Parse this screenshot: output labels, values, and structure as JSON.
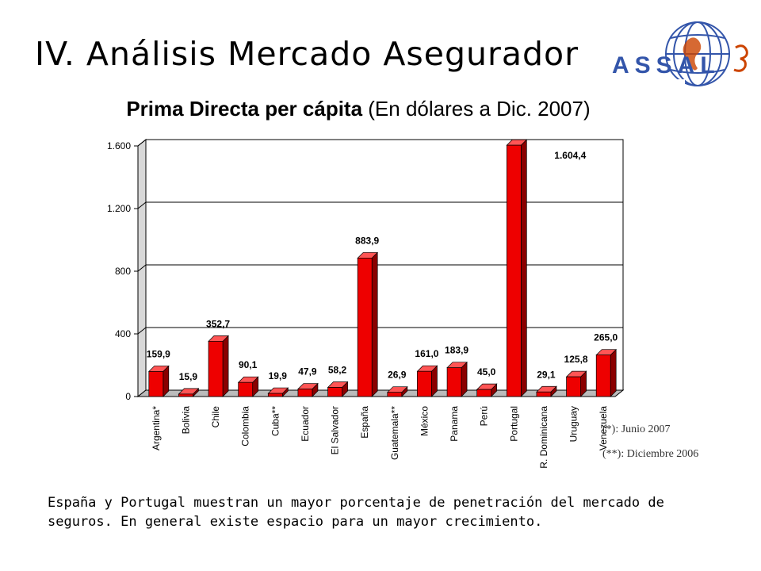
{
  "slide": {
    "title": "IV. Análisis Mercado Asegurador",
    "logo_text": "ASSAL",
    "caption": "España y Portugal muestran un mayor porcentaje de penetración del mercado de seguros. En general existe espacio para un mayor crecimiento."
  },
  "chart_data": {
    "type": "bar",
    "title_bold": "Prima Directa per cápita",
    "title_regular": " (En dólares a Dic. 2007)",
    "categories": [
      "Argentina*",
      "Bolivia",
      "Chile",
      "Colombia",
      "Cuba**",
      "Ecuador",
      "El Salvador",
      "España",
      "Guatemala**",
      "México",
      "Panama",
      "Perú",
      "Portugal",
      "R. Dominicana",
      "Uruguay",
      "Venezuela"
    ],
    "values": [
      159.9,
      15.9,
      352.7,
      90.1,
      19.9,
      47.9,
      58.2,
      883.9,
      26.9,
      161.0,
      183.9,
      45.0,
      1604.4,
      29.1,
      125.8,
      265.0
    ],
    "value_labels": [
      "159,9",
      "15,9",
      "352,7",
      "90,1",
      "19,9",
      "47,9",
      "58,2",
      "883,9",
      "26,9",
      "161,0",
      "183,9",
      "45,0",
      "1.604,4",
      "29,1",
      "125,8",
      "265,0"
    ],
    "yticks": [
      0,
      400,
      800,
      1200,
      1600
    ],
    "ytick_labels": [
      "0",
      "400",
      "800",
      "1.200",
      "1.600"
    ],
    "ylim": [
      0,
      1600
    ],
    "grid": true,
    "bar_color": "#ee0000",
    "footnotes": [
      "(*): Junio 2007",
      "(**): Diciembre 2006"
    ]
  }
}
